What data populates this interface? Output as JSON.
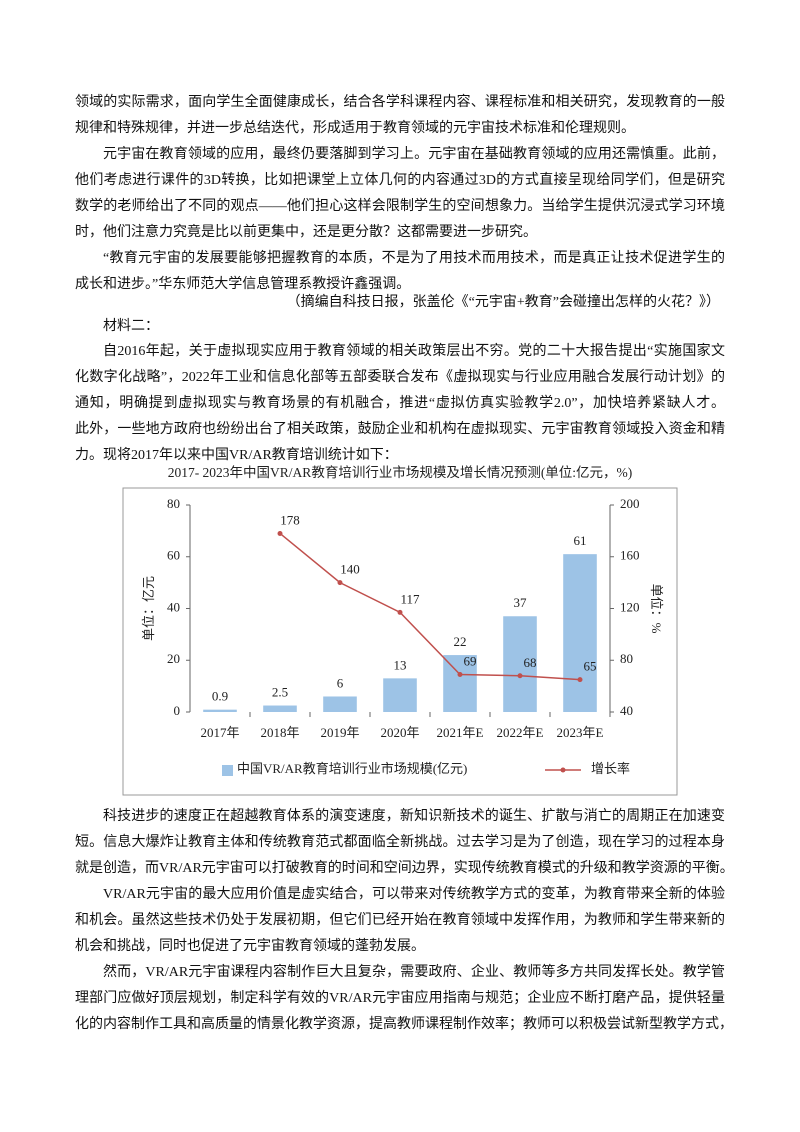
{
  "paragraphs_before": [
    [
      "领域的实际需求，面向学生全面健康成长，结合各学科课程内容、课程标准和相关研究，发现教育的一般",
      "规律和特殊规律，并进一步总结迭代，形成适用于教育领域的元宇宙技术标准和伦理规则。"
    ],
    [
      "元宇宙在教育领域的应用，最终仍要落脚到学习上。元宇宙在基础教育领域的应用还需慎重。此前，",
      "他们考虑进行课件的3D转换，比如把课堂上立体几何的内容通过3D的方式直接呈现给同学们，但是研究",
      "数学的老师给出了不同的观点——他们担心这样会限制学生的空间想象力。当给学生提供沉浸式学习环境",
      "时，他们注意力究竟是比以前更集中，还是更分散？这都需要进一步研究。"
    ],
    [
      "“教育元宇宙的发展要能够把握教育的本质，不是为了用技术而用技术，而是真正让技术促进学生的",
      "成长和进步。”华东师范大学信息管理系教授许鑫强调。"
    ]
  ],
  "citation": "（摘编自科技日报，张盖伦《“元宇宙+教育”会碰撞出怎样的火花？》）",
  "material_label": "材料二：",
  "material_paragraph": [
    "自2016年起，关于虚拟现实应用于教育领域的相关政策层出不穷。党的二十大报告提出“实施国家文",
    "化数字化战略”，2022年工业和信息化部等五部委联合发布《虚拟现实与行业应用融合发展行动计划》的",
    "通知，明确提到虚拟现实与教育场景的有机融合，推进“虚拟仿真实验教学2.0”，加快培养紧缺人才。",
    "此外，一些地方政府也纷纷出台了相关政策，鼓励企业和机构在虚拟现实、元宇宙教育领域投入资金和精",
    "力。现将2017年以来中国VR/AR教育培训统计如下："
  ],
  "chart_data": {
    "type": "bar_line",
    "title": "2017- 2023年中国VR/AR教育培训行业市场规模及增长情况预测(单位:亿元，%)",
    "y_label": "单位：亿元",
    "y2_label": "单位：%",
    "categories": [
      "2017年",
      "2018年",
      "2019年",
      "2020年",
      "2021年E",
      "2022年E",
      "2023年E"
    ],
    "series": [
      {
        "name": "中国VR/AR教育培训行业市场规模(亿元)",
        "type": "bar",
        "color": "#9dc3e6",
        "values": [
          0.9,
          2.5,
          6,
          13,
          22,
          37,
          61
        ]
      },
      {
        "name": "增长率",
        "type": "line",
        "axis": "y2",
        "color": "#c0504d",
        "values": [
          null,
          178,
          140,
          117,
          69,
          68,
          65
        ]
      }
    ],
    "ylim": [
      0,
      80
    ],
    "yticks": [
      0,
      20,
      40,
      60,
      80
    ],
    "y2lim": [
      40,
      200
    ],
    "y2ticks": [
      40,
      80,
      120,
      160,
      200
    ],
    "legend": "bottom"
  },
  "paragraphs_after": [
    [
      "科技进步的速度正在超越教育体系的演变速度，新知识新技术的诞生、扩散与消亡的周期正在加速变",
      "短。信息大爆炸让教育主体和传统教育范式都面临全新挑战。过去学习是为了创造，现在学习的过程本身",
      "就是创造，而VR/AR元宇宙可以打破教育的时间和空间边界，实现传统教育模式的升级和教学资源的平衡。"
    ],
    [
      "VR/AR元宇宙的最大应用价值是虚实结合，可以带来对传统教学方式的变革，为教育带来全新的体验",
      "和机会。虽然这些技术仍处于发展初期，但它们已经开始在教育领域中发挥作用，为教师和学生带来新的",
      "机会和挑战，同时也促进了元宇宙教育领域的蓬勃发展。"
    ],
    [
      "然而，VR/AR元宇宙课程内容制作巨大且复杂，需要政府、企业、教师等多方共同发挥长处。教学管",
      "理部门应做好顶层规划，制定科学有效的VR/AR元宇宙应用指南与规范；企业应不断打磨产品，提供轻量",
      "化的内容制作工具和高质量的情景化教学资源，提高教师课程制作效率；教师可以积极尝试新型教学方式，"
    ]
  ]
}
